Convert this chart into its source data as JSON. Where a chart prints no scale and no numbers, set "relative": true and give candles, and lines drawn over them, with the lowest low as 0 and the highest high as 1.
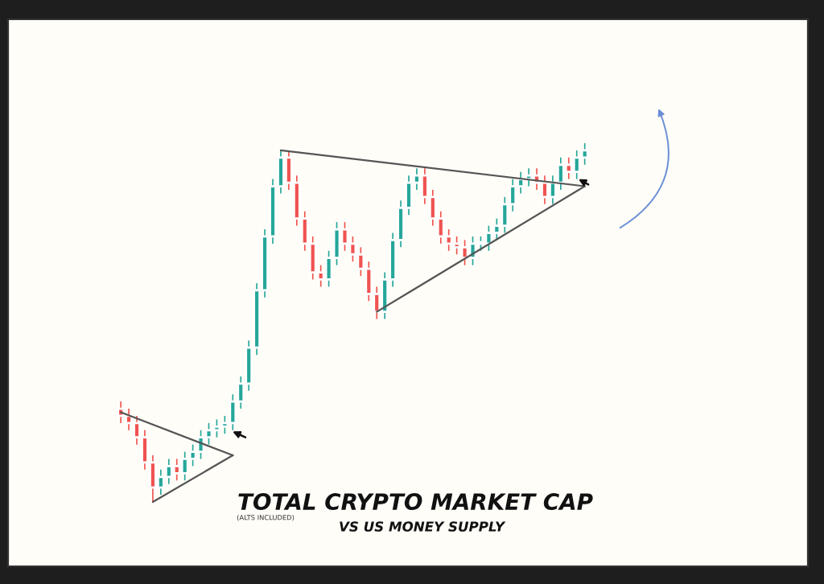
{
  "chart_data": {
    "type": "candlestick",
    "title": "TOTAL CRYPTO MARKET CAP",
    "subtitle": "VS US MONEY SUPPLY",
    "annotations": [
      "(ALTS INCLUDED)"
    ],
    "relative": true,
    "categories": [
      null,
      null,
      null,
      null,
      null,
      null,
      null,
      null,
      null,
      null,
      null,
      null,
      null,
      null,
      null,
      null,
      null,
      null,
      null,
      null,
      null,
      null,
      null,
      null,
      null,
      null,
      null,
      null,
      null,
      null,
      null,
      null,
      null,
      null,
      null,
      null,
      null,
      null,
      null,
      null,
      null,
      null,
      null,
      null,
      null,
      null,
      null,
      null,
      null,
      null,
      null,
      null,
      null,
      null,
      null,
      null,
      null,
      null,
      null
    ],
    "ohlc": [
      [
        0.26,
        0.28,
        0.22,
        0.24
      ],
      [
        0.24,
        0.26,
        0.2,
        0.22
      ],
      [
        0.22,
        0.24,
        0.16,
        0.18
      ],
      [
        0.18,
        0.2,
        0.09,
        0.11
      ],
      [
        0.11,
        0.13,
        0,
        0.04
      ],
      [
        0.04,
        0.09,
        0.02,
        0.07
      ],
      [
        0.07,
        0.12,
        0.05,
        0.1
      ],
      [
        0.1,
        0.12,
        0.06,
        0.08
      ],
      [
        0.08,
        0.14,
        0.06,
        0.12
      ],
      [
        0.12,
        0.16,
        0.1,
        0.14
      ],
      [
        0.14,
        0.2,
        0.12,
        0.18
      ],
      [
        0.18,
        0.22,
        0.16,
        0.2
      ],
      [
        0.2,
        0.23,
        0.18,
        0.21
      ],
      [
        0.21,
        0.24,
        0.19,
        0.22
      ],
      [
        0.22,
        0.3,
        0.2,
        0.28
      ],
      [
        0.28,
        0.35,
        0.26,
        0.33
      ],
      [
        0.33,
        0.45,
        0.31,
        0.43
      ],
      [
        0.43,
        0.61,
        0.41,
        0.59
      ],
      [
        0.59,
        0.76,
        0.57,
        0.74
      ],
      [
        0.74,
        0.9,
        0.72,
        0.88
      ],
      [
        0.88,
        0.98,
        0.86,
        0.96
      ],
      [
        0.96,
        0.98,
        0.87,
        0.89
      ],
      [
        0.89,
        0.91,
        0.77,
        0.79
      ],
      [
        0.79,
        0.81,
        0.7,
        0.72
      ],
      [
        0.72,
        0.74,
        0.62,
        0.64
      ],
      [
        0.64,
        0.66,
        0.6,
        0.62
      ],
      [
        0.62,
        0.7,
        0.6,
        0.68
      ],
      [
        0.68,
        0.78,
        0.66,
        0.76
      ],
      [
        0.76,
        0.78,
        0.7,
        0.72
      ],
      [
        0.72,
        0.74,
        0.67,
        0.69
      ],
      [
        0.69,
        0.71,
        0.63,
        0.65
      ],
      [
        0.65,
        0.67,
        0.56,
        0.58
      ],
      [
        0.58,
        0.6,
        0.51,
        0.53
      ],
      [
        0.53,
        0.64,
        0.51,
        0.62
      ],
      [
        0.62,
        0.75,
        0.6,
        0.73
      ],
      [
        0.73,
        0.84,
        0.71,
        0.82
      ],
      [
        0.82,
        0.91,
        0.8,
        0.89
      ],
      [
        0.89,
        0.93,
        0.87,
        0.91
      ],
      [
        0.91,
        0.93,
        0.83,
        0.85
      ],
      [
        0.85,
        0.87,
        0.77,
        0.79
      ],
      [
        0.79,
        0.81,
        0.72,
        0.74
      ],
      [
        0.74,
        0.76,
        0.7,
        0.72
      ],
      [
        0.72,
        0.74,
        0.69,
        0.71
      ],
      [
        0.71,
        0.73,
        0.66,
        0.68
      ],
      [
        0.68,
        0.74,
        0.66,
        0.72
      ],
      [
        0.72,
        0.74,
        0.7,
        0.72
      ],
      [
        0.72,
        0.77,
        0.7,
        0.75
      ],
      [
        0.75,
        0.79,
        0.73,
        0.77
      ],
      [
        0.77,
        0.85,
        0.75,
        0.83
      ],
      [
        0.83,
        0.9,
        0.81,
        0.88
      ],
      [
        0.88,
        0.92,
        0.86,
        0.9
      ],
      [
        0.9,
        0.93,
        0.88,
        0.91
      ],
      [
        0.91,
        0.93,
        0.87,
        0.89
      ],
      [
        0.89,
        0.91,
        0.83,
        0.85
      ],
      [
        0.85,
        0.91,
        0.83,
        0.89
      ],
      [
        0.89,
        0.96,
        0.87,
        0.94
      ],
      [
        0.94,
        0.96,
        0.9,
        0.92
      ],
      [
        0.92,
        0.98,
        0.9,
        0.96
      ],
      [
        0.96,
        1.0,
        0.94,
        0.98
      ]
    ],
    "series": [
      {
        "type": "line",
        "color": "#555555",
        "values": [
          0.25,
          null,
          null,
          null,
          null,
          null,
          null,
          null,
          null,
          null,
          null,
          null,
          null,
          null,
          0.13,
          null,
          null,
          null,
          null,
          null,
          null,
          null,
          null,
          null,
          null,
          null,
          null,
          null,
          null,
          null,
          null,
          null,
          null,
          null,
          null,
          null,
          null,
          null,
          null,
          null,
          null,
          null,
          null,
          null,
          null,
          null,
          null,
          null,
          null,
          null,
          null,
          null,
          null,
          null,
          null,
          null,
          null,
          null,
          null
        ]
      },
      {
        "type": "line",
        "color": "#555555",
        "values": [
          null,
          null,
          null,
          null,
          0,
          null,
          null,
          null,
          null,
          null,
          null,
          null,
          null,
          null,
          0.13,
          null,
          null,
          null,
          null,
          null,
          null,
          null,
          null,
          null,
          null,
          null,
          null,
          null,
          null,
          null,
          null,
          null,
          null,
          null,
          null,
          null,
          null,
          null,
          null,
          null,
          null,
          null,
          null,
          null,
          null,
          null,
          null,
          null,
          null,
          null,
          null,
          null,
          null,
          null,
          null,
          null,
          null,
          null,
          null
        ]
      },
      {
        "type": "line",
        "color": "#555555",
        "values": [
          null,
          null,
          null,
          null,
          null,
          null,
          null,
          null,
          null,
          null,
          null,
          null,
          null,
          null,
          null,
          null,
          null,
          null,
          null,
          null,
          0.98,
          null,
          null,
          null,
          null,
          null,
          null,
          null,
          null,
          null,
          null,
          null,
          null,
          null,
          null,
          null,
          null,
          null,
          null,
          null,
          null,
          null,
          null,
          null,
          null,
          null,
          null,
          null,
          null,
          null,
          null,
          null,
          null,
          null,
          null,
          null,
          null,
          null,
          0.88
        ]
      },
      {
        "type": "line",
        "color": "#555555",
        "values": [
          null,
          null,
          null,
          null,
          null,
          null,
          null,
          null,
          null,
          null,
          null,
          null,
          null,
          null,
          null,
          null,
          null,
          null,
          null,
          null,
          null,
          null,
          null,
          null,
          null,
          null,
          null,
          null,
          null,
          null,
          null,
          null,
          0.53,
          null,
          null,
          null,
          null,
          null,
          null,
          null,
          null,
          null,
          null,
          null,
          null,
          null,
          null,
          null,
          null,
          null,
          null,
          null,
          null,
          null,
          null,
          null,
          null,
          null,
          0.88
        ]
      }
    ]
  }
}
